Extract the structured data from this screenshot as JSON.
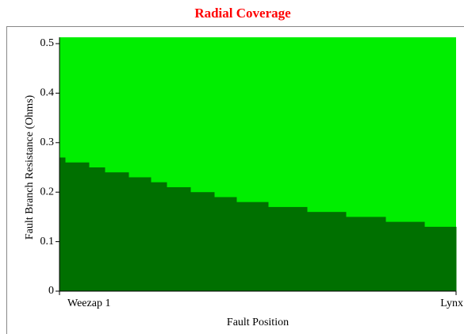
{
  "chart_data": {
    "type": "step_area",
    "title": "Radial Coverage",
    "x_label": "Fault Position",
    "y_label": "Fault Branch Resistance (Ohms)",
    "x": [
      0,
      0.014,
      0.074,
      0.114,
      0.174,
      0.23,
      0.27,
      0.33,
      0.39,
      0.446,
      0.526,
      0.624,
      0.722,
      0.822,
      0.92
    ],
    "values": [
      0.27,
      0.26,
      0.25,
      0.24,
      0.23,
      0.22,
      0.21,
      0.2,
      0.19,
      0.18,
      0.17,
      0.16,
      0.15,
      0.14,
      0.13
    ],
    "color": "#007000",
    "background_color": "#00ee00",
    "xlim": [
      0,
      1
    ],
    "xticks": [
      {
        "value": 0,
        "label": "Weezap 1"
      },
      {
        "value": 1,
        "label": "Lynx"
      }
    ],
    "ylim": [
      0,
      0.5
    ],
    "yticks": [
      0,
      0.1,
      0.2,
      0.3,
      0.4,
      0.5
    ]
  }
}
